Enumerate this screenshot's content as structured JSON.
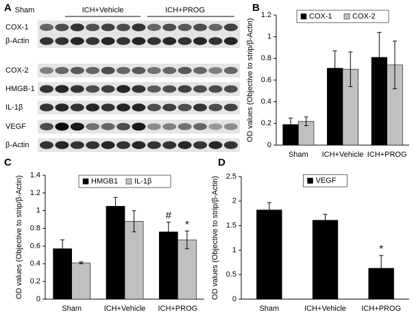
{
  "blot": {
    "panel": "A",
    "groups": [
      "Sham",
      "ICH+Vehicle",
      "ICH+PROG"
    ],
    "rows": [
      "COX-1",
      "β-Actin",
      "COX-2",
      "HMGB-1",
      "IL-1β",
      "VEGF",
      "β-Actin"
    ]
  },
  "chart_data": [
    {
      "type": "bar",
      "panel": "B",
      "y_label": "OD values (Objective to strip/β-Actin)",
      "categories": [
        "Sham",
        "ICH+Vehicle",
        "ICH+PROG"
      ],
      "series": [
        {
          "name": "COX-1",
          "color": "#000000",
          "values": [
            0.19,
            0.71,
            0.81
          ],
          "errors": [
            0.06,
            0.16,
            0.23
          ]
        },
        {
          "name": "COX-2",
          "color": "#c0c0c0",
          "values": [
            0.22,
            0.7,
            0.74
          ],
          "errors": [
            0.04,
            0.16,
            0.22
          ]
        }
      ],
      "ylim": [
        0,
        1.2
      ],
      "yticks": [
        0,
        0.2,
        0.4,
        0.6,
        0.8,
        1,
        1.2
      ],
      "grid": false,
      "legend": "top"
    },
    {
      "type": "bar",
      "panel": "C",
      "y_label": "OD values (Objective to strip/β-Actin)",
      "categories": [
        "Sham",
        "ICH+Vehicle",
        "ICH+PROG"
      ],
      "series": [
        {
          "name": "HMGB1",
          "color": "#000000",
          "values": [
            0.57,
            1.05,
            0.76
          ],
          "errors": [
            0.1,
            0.1,
            0.11
          ],
          "annotations": [
            null,
            null,
            "#"
          ]
        },
        {
          "name": "IL-1β",
          "color": "#c0c0c0",
          "values": [
            0.41,
            0.88,
            0.67
          ],
          "errors": [
            0.01,
            0.12,
            0.1
          ],
          "annotations": [
            null,
            null,
            "*"
          ]
        }
      ],
      "ylim": [
        0,
        1.4
      ],
      "yticks": [
        0,
        0.2,
        0.4,
        0.6,
        0.8,
        1,
        1.2,
        1.4
      ],
      "grid": false,
      "legend": "top"
    },
    {
      "type": "bar",
      "panel": "D",
      "y_label": "OD values (Objective to strip/β-Actin)",
      "categories": [
        "Sham",
        "ICH+Vehicle",
        "ICH+PROG"
      ],
      "series": [
        {
          "name": "VEGF",
          "color": "#000000",
          "values": [
            1.82,
            1.61,
            0.63
          ],
          "errors": [
            0.15,
            0.12,
            0.26
          ],
          "annotations": [
            null,
            null,
            "*"
          ]
        }
      ],
      "ylim": [
        0,
        2.5
      ],
      "yticks": [
        0,
        0.5,
        1,
        1.5,
        2,
        2.5
      ],
      "grid": false,
      "legend": "top"
    }
  ]
}
